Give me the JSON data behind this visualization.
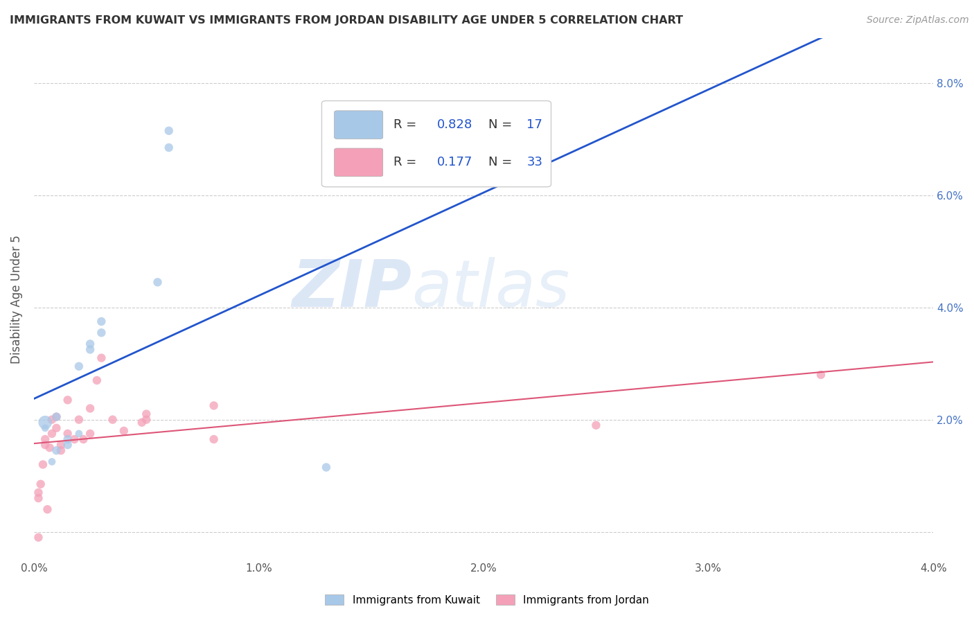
{
  "title": "IMMIGRANTS FROM KUWAIT VS IMMIGRANTS FROM JORDAN DISABILITY AGE UNDER 5 CORRELATION CHART",
  "source": "Source: ZipAtlas.com",
  "ylabel": "Disability Age Under 5",
  "legend_label1": "Immigrants from Kuwait",
  "legend_label2": "Immigrants from Jordan",
  "r1": 0.828,
  "n1": 17,
  "r2": 0.177,
  "n2": 33,
  "xlim": [
    0.0,
    0.04
  ],
  "ylim": [
    -0.005,
    0.088
  ],
  "xtick_vals": [
    0.0,
    0.01,
    0.02,
    0.03,
    0.04
  ],
  "xtick_labels": [
    "0.0%",
    "1.0%",
    "2.0%",
    "3.0%",
    "4.0%"
  ],
  "ytick_vals": [
    0.0,
    0.02,
    0.04,
    0.06,
    0.08
  ],
  "ytick_labels": [
    "",
    "2.0%",
    "4.0%",
    "6.0%",
    "8.0%"
  ],
  "color_kuwait": "#a8c8e8",
  "color_jordan": "#f4a0b8",
  "line_color_kuwait": "#2255cc",
  "line_color_jordan": "#dd5577",
  "background_color": "#ffffff",
  "watermark_zip": "ZIP",
  "watermark_atlas": "atlas",
  "kuwait_points": [
    [
      0.0005,
      0.0185
    ],
    [
      0.0005,
      0.0195
    ],
    [
      0.0008,
      0.0125
    ],
    [
      0.001,
      0.0145
    ],
    [
      0.001,
      0.0205
    ],
    [
      0.0015,
      0.0165
    ],
    [
      0.0015,
      0.0155
    ],
    [
      0.002,
      0.0175
    ],
    [
      0.002,
      0.0295
    ],
    [
      0.0025,
      0.0325
    ],
    [
      0.0025,
      0.0335
    ],
    [
      0.003,
      0.0355
    ],
    [
      0.003,
      0.0375
    ],
    [
      0.0055,
      0.0445
    ],
    [
      0.006,
      0.0685
    ],
    [
      0.006,
      0.0715
    ],
    [
      0.013,
      0.0115
    ]
  ],
  "kuwait_sizes": [
    60,
    200,
    60,
    80,
    80,
    80,
    80,
    60,
    80,
    80,
    80,
    80,
    80,
    80,
    80,
    80,
    80
  ],
  "jordan_points": [
    [
      0.0002,
      0.006
    ],
    [
      0.0002,
      -0.001
    ],
    [
      0.0002,
      0.007
    ],
    [
      0.0003,
      0.0085
    ],
    [
      0.0004,
      0.012
    ],
    [
      0.0005,
      0.0155
    ],
    [
      0.0005,
      0.0165
    ],
    [
      0.0006,
      0.004
    ],
    [
      0.0007,
      0.015
    ],
    [
      0.0008,
      0.0175
    ],
    [
      0.0008,
      0.02
    ],
    [
      0.001,
      0.0185
    ],
    [
      0.001,
      0.0205
    ],
    [
      0.0012,
      0.0145
    ],
    [
      0.0012,
      0.0155
    ],
    [
      0.0015,
      0.0175
    ],
    [
      0.0015,
      0.0235
    ],
    [
      0.0018,
      0.0165
    ],
    [
      0.002,
      0.02
    ],
    [
      0.0022,
      0.0165
    ],
    [
      0.0025,
      0.0175
    ],
    [
      0.0025,
      0.022
    ],
    [
      0.0028,
      0.027
    ],
    [
      0.003,
      0.031
    ],
    [
      0.0035,
      0.02
    ],
    [
      0.004,
      0.018
    ],
    [
      0.0048,
      0.0195
    ],
    [
      0.005,
      0.02
    ],
    [
      0.005,
      0.021
    ],
    [
      0.008,
      0.0165
    ],
    [
      0.008,
      0.0225
    ],
    [
      0.025,
      0.019
    ],
    [
      0.035,
      0.028
    ]
  ],
  "jordan_sizes": [
    80,
    80,
    80,
    80,
    80,
    80,
    80,
    80,
    80,
    80,
    80,
    80,
    80,
    80,
    80,
    80,
    80,
    80,
    80,
    80,
    80,
    80,
    80,
    80,
    80,
    80,
    80,
    80,
    80,
    80,
    80,
    80,
    80
  ]
}
